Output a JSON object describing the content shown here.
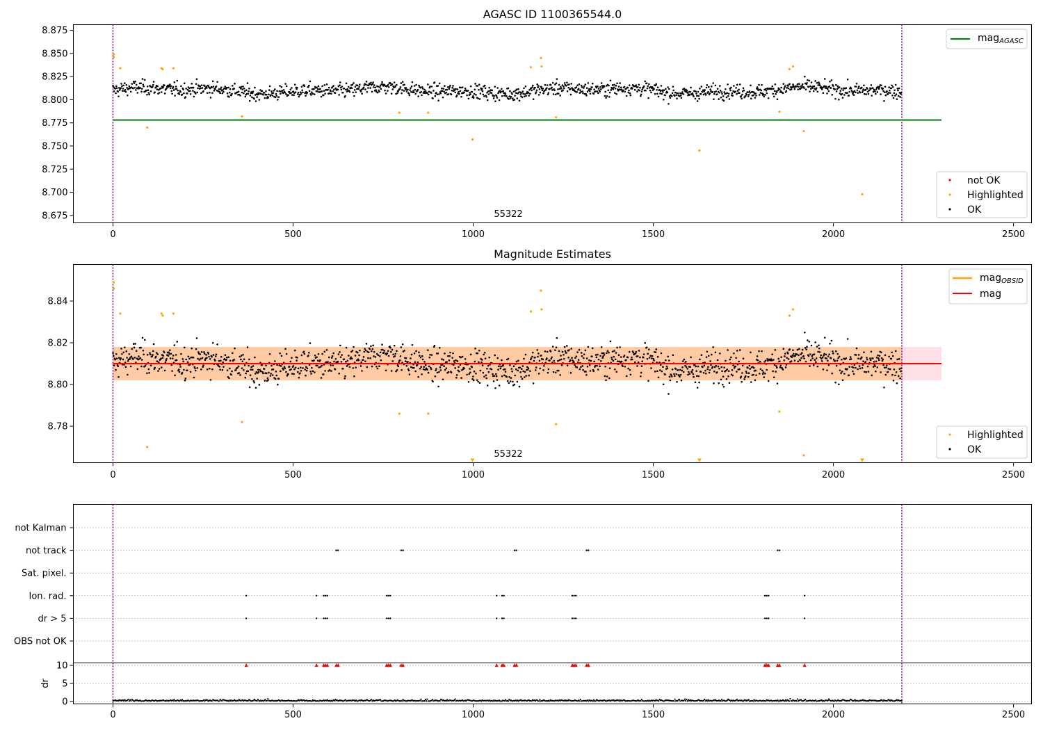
{
  "chart_data": [
    {
      "type": "scatter",
      "title": "AGASC ID 1100365544.0",
      "xlim": [
        -110,
        2550
      ],
      "ylim": [
        8.667,
        8.881
      ],
      "x_ticks": [
        "0",
        "500",
        "1000",
        "1500",
        "2000",
        "2500"
      ],
      "y_ticks": [
        "8.675",
        "8.700",
        "8.725",
        "8.750",
        "8.775",
        "8.800",
        "8.825",
        "8.850",
        "8.875"
      ],
      "annotation": "55322",
      "mag_agasc": 8.778,
      "vlines": [
        0,
        2190
      ],
      "legend_top": [
        "mag",
        "AGASC"
      ],
      "legend_bottom": [
        "not OK",
        "Highlighted",
        "OK"
      ],
      "ok_center": 8.81,
      "highlighted_points": [
        {
          "x": 2,
          "y": 8.849
        },
        {
          "x": 2,
          "y": 8.846
        },
        {
          "x": 20,
          "y": 8.834
        },
        {
          "x": 95,
          "y": 8.77
        },
        {
          "x": 135,
          "y": 8.834
        },
        {
          "x": 138,
          "y": 8.833
        },
        {
          "x": 168,
          "y": 8.834
        },
        {
          "x": 358,
          "y": 8.782
        },
        {
          "x": 795,
          "y": 8.786
        },
        {
          "x": 875,
          "y": 8.786
        },
        {
          "x": 998,
          "y": 8.757
        },
        {
          "x": 1160,
          "y": 8.835
        },
        {
          "x": 1188,
          "y": 8.845
        },
        {
          "x": 1190,
          "y": 8.836
        },
        {
          "x": 1230,
          "y": 8.781
        },
        {
          "x": 1628,
          "y": 8.745
        },
        {
          "x": 1850,
          "y": 8.787
        },
        {
          "x": 1878,
          "y": 8.833
        },
        {
          "x": 1888,
          "y": 8.836
        },
        {
          "x": 1918,
          "y": 8.766
        },
        {
          "x": 2080,
          "y": 8.698
        }
      ],
      "colors": {
        "ok": "#000000",
        "highlighted": "#ffa500",
        "not_ok": "#ff0000",
        "agasc_line": "#008000",
        "vline": "#800080"
      }
    },
    {
      "type": "scatter",
      "title": "Magnitude Estimates",
      "xlim": [
        -110,
        2550
      ],
      "ylim": [
        8.7625,
        8.8575
      ],
      "x_ticks": [
        "0",
        "500",
        "1000",
        "1500",
        "2000",
        "2500"
      ],
      "y_ticks": [
        "8.78",
        "8.80",
        "8.82",
        "8.84"
      ],
      "annotation": "55322",
      "mag": 8.81,
      "band": [
        8.802,
        8.818
      ],
      "vlines": [
        0,
        2190
      ],
      "legend_top": [
        "mag",
        "OBSID",
        "mag"
      ],
      "legend_bottom": [
        "Highlighted",
        "OK"
      ],
      "highlighted_points": [
        {
          "x": 2,
          "y": 8.849
        },
        {
          "x": 2,
          "y": 8.846
        },
        {
          "x": 20,
          "y": 8.834
        },
        {
          "x": 95,
          "y": 8.77
        },
        {
          "x": 135,
          "y": 8.834
        },
        {
          "x": 138,
          "y": 8.833
        },
        {
          "x": 168,
          "y": 8.834
        },
        {
          "x": 358,
          "y": 8.782
        },
        {
          "x": 795,
          "y": 8.786
        },
        {
          "x": 875,
          "y": 8.786
        },
        {
          "x": 1160,
          "y": 8.835
        },
        {
          "x": 1188,
          "y": 8.845
        },
        {
          "x": 1190,
          "y": 8.836
        },
        {
          "x": 1230,
          "y": 8.781
        },
        {
          "x": 1850,
          "y": 8.787
        },
        {
          "x": 1878,
          "y": 8.833
        },
        {
          "x": 1888,
          "y": 8.836
        },
        {
          "x": 1918,
          "y": 8.766
        }
      ],
      "offscale_markers": [
        998,
        1628,
        2080
      ],
      "colors": {
        "mag_line": "#ff0000",
        "mag_obsid": "#ffa500",
        "band_fill": "#ffcba4",
        "band_edge": "#ffe0e6"
      }
    },
    {
      "type": "scatter",
      "title": "",
      "xlim": [
        -110,
        2550
      ],
      "x_ticks": [
        "0",
        "500",
        "1000",
        "1500",
        "2000",
        "2500"
      ],
      "flag_rows": [
        "not Kalman",
        "not track",
        "Sat. pixel.",
        "Ion. rad.",
        "dr > 5",
        "OBS not OK"
      ],
      "flags": {
        "not track": [
          620,
          625,
          800,
          805,
          1115,
          1120,
          1315,
          1320,
          1845,
          1850
        ],
        "Ion. rad.": [
          370,
          565,
          585,
          590,
          595,
          760,
          765,
          770,
          1065,
          1080,
          1085,
          1275,
          1280,
          1285,
          1810,
          1815,
          1820,
          1920
        ],
        "dr > 5": [
          370,
          565,
          585,
          590,
          595,
          760,
          765,
          770,
          1065,
          1080,
          1085,
          1275,
          1280,
          1285,
          1810,
          1815,
          1820,
          1920
        ]
      },
      "dr_ylabel": "dr",
      "dr_ylim": [
        0,
        10
      ],
      "dr_ticks": [
        "0",
        "5",
        "10"
      ],
      "dr_clipped_x": [
        370,
        565,
        585,
        590,
        595,
        620,
        625,
        760,
        765,
        770,
        800,
        805,
        1065,
        1080,
        1085,
        1115,
        1120,
        1275,
        1280,
        1285,
        1315,
        1320,
        1810,
        1815,
        1820,
        1845,
        1850,
        1920
      ]
    }
  ]
}
